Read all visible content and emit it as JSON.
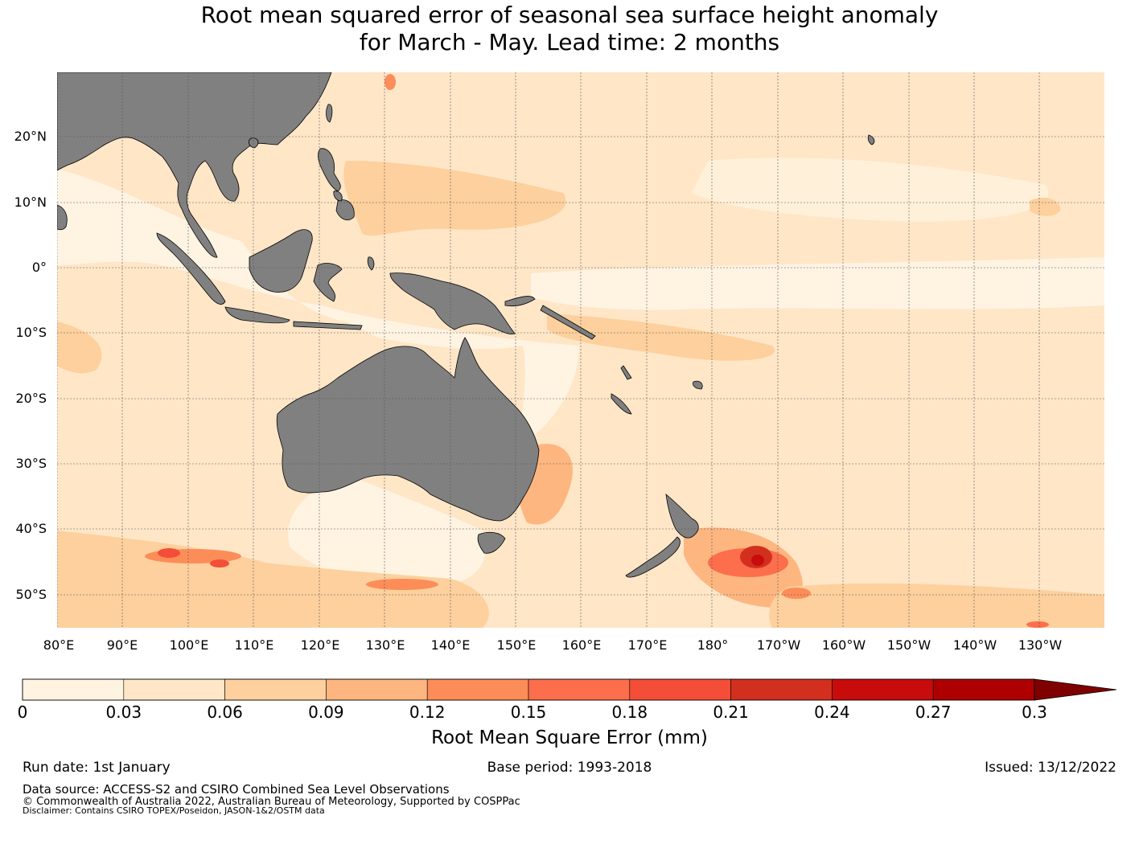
{
  "title_line1": "Root mean squared error of seasonal sea surface height anomaly",
  "title_line2": "for March - May. Lead time: 2 months",
  "map": {
    "lat_labels": [
      "20°N",
      "10°N",
      "0°",
      "10°S",
      "20°S",
      "30°S",
      "40°S",
      "50°S"
    ],
    "lon_labels": [
      "80°E",
      "90°E",
      "100°E",
      "110°E",
      "120°E",
      "130°E",
      "140°E",
      "150°E",
      "160°E",
      "170°E",
      "180°",
      "170°W",
      "160°W",
      "150°W",
      "140°W",
      "130°W"
    ],
    "land_color": "#808080",
    "ocean_base_color": "#fee6c7"
  },
  "colorbar": {
    "ticks": [
      "0",
      "0.03",
      "0.06",
      "0.09",
      "0.12",
      "0.15",
      "0.18",
      "0.21",
      "0.24",
      "0.27",
      "0.3"
    ],
    "colors": [
      "#fff3e2",
      "#fee6c7",
      "#fdd09d",
      "#fdb680",
      "#fc8d59",
      "#fc6e4c",
      "#f44d38",
      "#d32f1f",
      "#c80b0b",
      "#ae0000"
    ],
    "extend_color": "#7f0000",
    "label": "Root Mean Square Error (mm)"
  },
  "footer": {
    "run_date": "Run date: 1st January",
    "base_period": "Base period: 1993-2018",
    "issued": "Issued: 13/12/2022",
    "data_source": "Data source: ACCESS-S2 and CSIRO Combined Sea Level Observations",
    "copyright": "© Commonwealth of Australia 2022, Australian Bureau of Meteorology, Supported by COSPPac",
    "disclaimer": "Disclaimer: Contains CSIRO TOPEX/Poseidon, JASON-1&2/OSTM data"
  }
}
